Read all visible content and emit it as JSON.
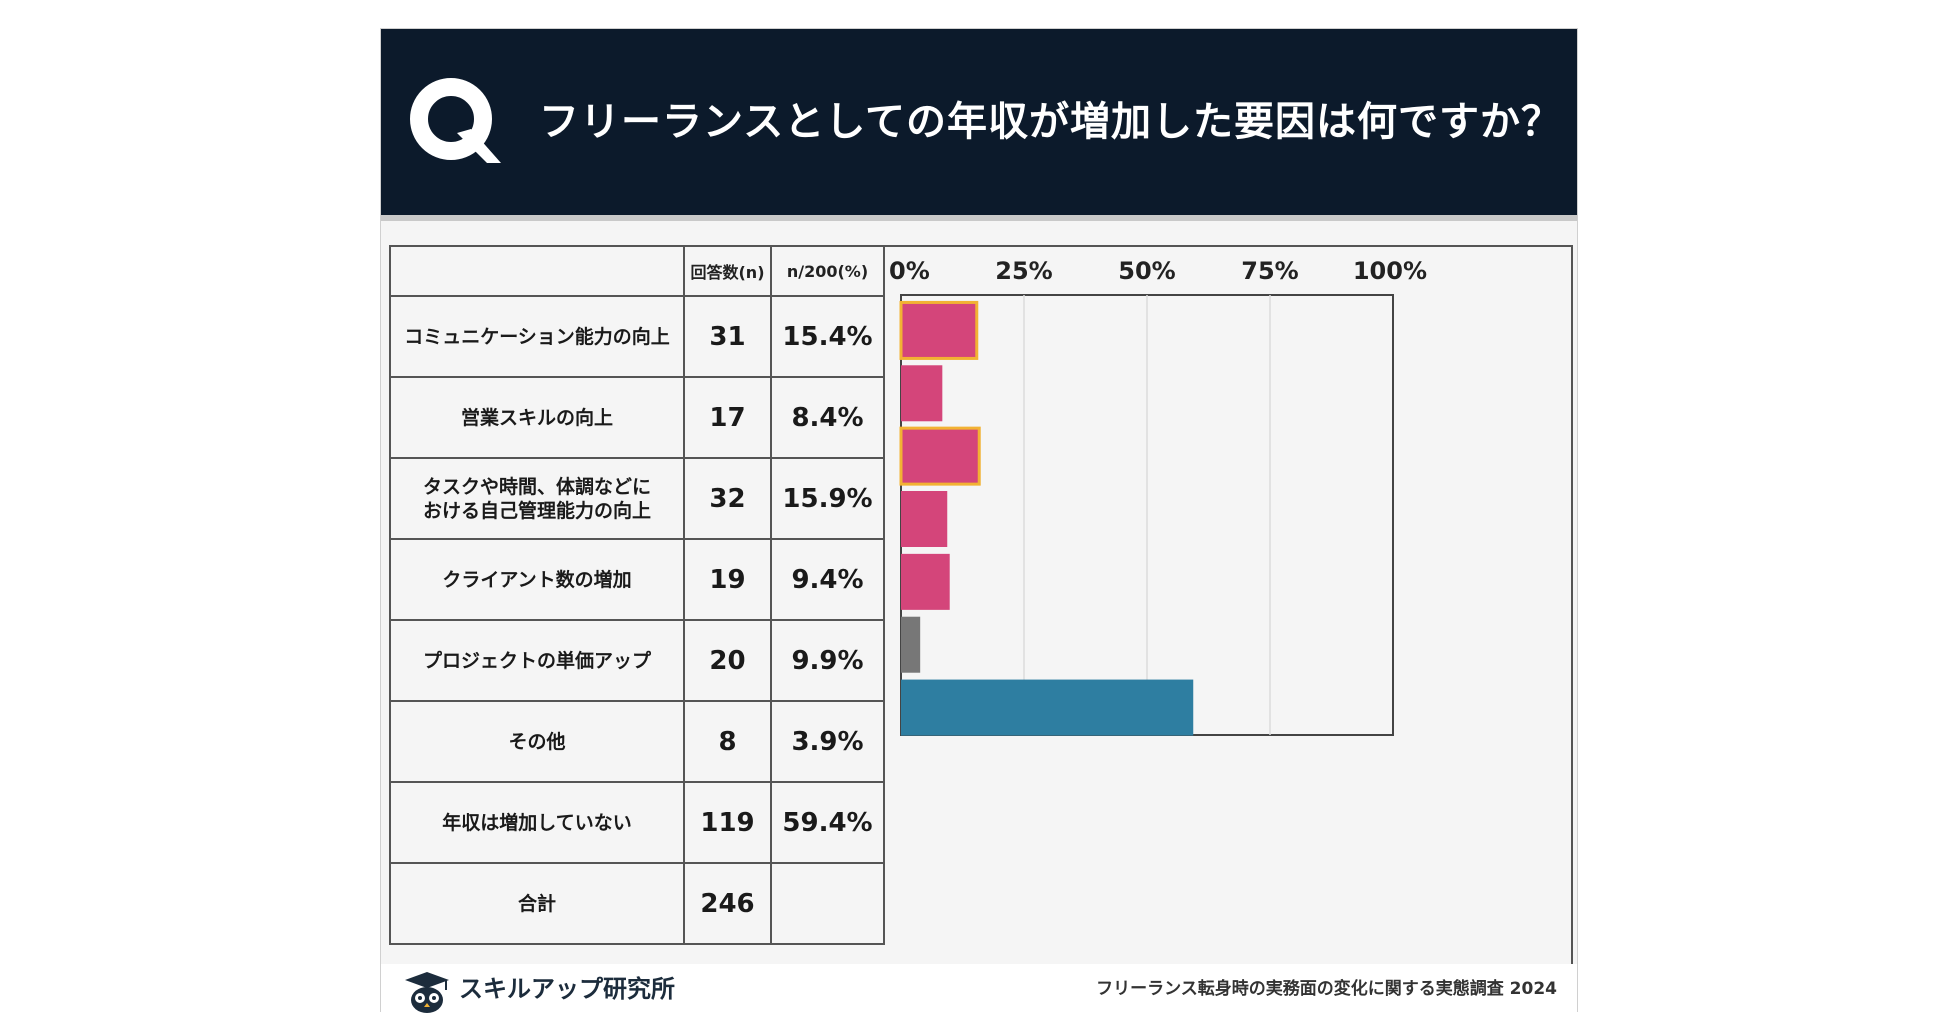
{
  "header": {
    "q_mark": "Q",
    "title": "フリーランスとしての年収が増加した要因は何ですか？"
  },
  "table": {
    "col_label": "",
    "col_count": "回答数(n)",
    "col_pct": "n/200(%)",
    "rows": [
      {
        "label": "コミュニケーション能力の向上",
        "count": "31",
        "pct": "15.4%"
      },
      {
        "label": "営業スキルの向上",
        "count": "17",
        "pct": "8.4%"
      },
      {
        "label": "タスクや時間、体調などにおける自己管理能力の向上",
        "count": "32",
        "pct": "15.9%"
      },
      {
        "label": "クライアント数の増加",
        "count": "19",
        "pct": "9.4%"
      },
      {
        "label": "プロジェクトの単価アップ",
        "count": "20",
        "pct": "9.9%"
      },
      {
        "label": "その他",
        "count": "8",
        "pct": "3.9%"
      },
      {
        "label": "年収は増加していない",
        "count": "119",
        "pct": "59.4%"
      }
    ],
    "total_label": "合計",
    "total_count": "246",
    "total_pct": ""
  },
  "chart_data": {
    "type": "bar",
    "orientation": "horizontal",
    "categories": [
      "コミュニケーション能力の向上",
      "営業スキルの向上",
      "タスクや時間、体調などにおける自己管理能力の向上",
      "クライアント数の増加",
      "プロジェクトの単価アップ",
      "その他",
      "年収は増加していない"
    ],
    "values": [
      15.4,
      8.4,
      15.9,
      9.4,
      9.9,
      3.9,
      59.4
    ],
    "bar_colors": [
      "#d4457a",
      "#d4457a",
      "#d4457a",
      "#d4457a",
      "#d4457a",
      "#777777",
      "#2e7ea1"
    ],
    "highlight_outline": [
      true,
      false,
      true,
      false,
      false,
      false,
      false
    ],
    "highlight_color": "#f2b233",
    "xlim": [
      0,
      100
    ],
    "ticks": [
      0,
      25,
      50,
      75,
      100
    ],
    "tick_labels": [
      "0%",
      "25%",
      "50%",
      "75%",
      "100%"
    ],
    "grid": true,
    "title": "",
    "xlabel": "",
    "ylabel": ""
  },
  "footer": {
    "brand": "スキルアップ研究所",
    "source": "フリーランス転身時の実務面の変化に関する実態調査 2024"
  },
  "colors": {
    "header_bg": "#0c1a2b",
    "card_bg": "#f5f5f5"
  }
}
